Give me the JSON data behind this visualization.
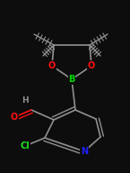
{
  "bg_color": "#0d0d0d",
  "bond_color": "#909090",
  "bond_width": 1.2,
  "atom_colors": {
    "C": "#7ac0c0",
    "N": "#2020ff",
    "O": "#ff1010",
    "B": "#00dd00",
    "Cl": "#20e020",
    "H": "#909090"
  },
  "figsize": [
    1.45,
    1.92
  ],
  "dpi": 100
}
